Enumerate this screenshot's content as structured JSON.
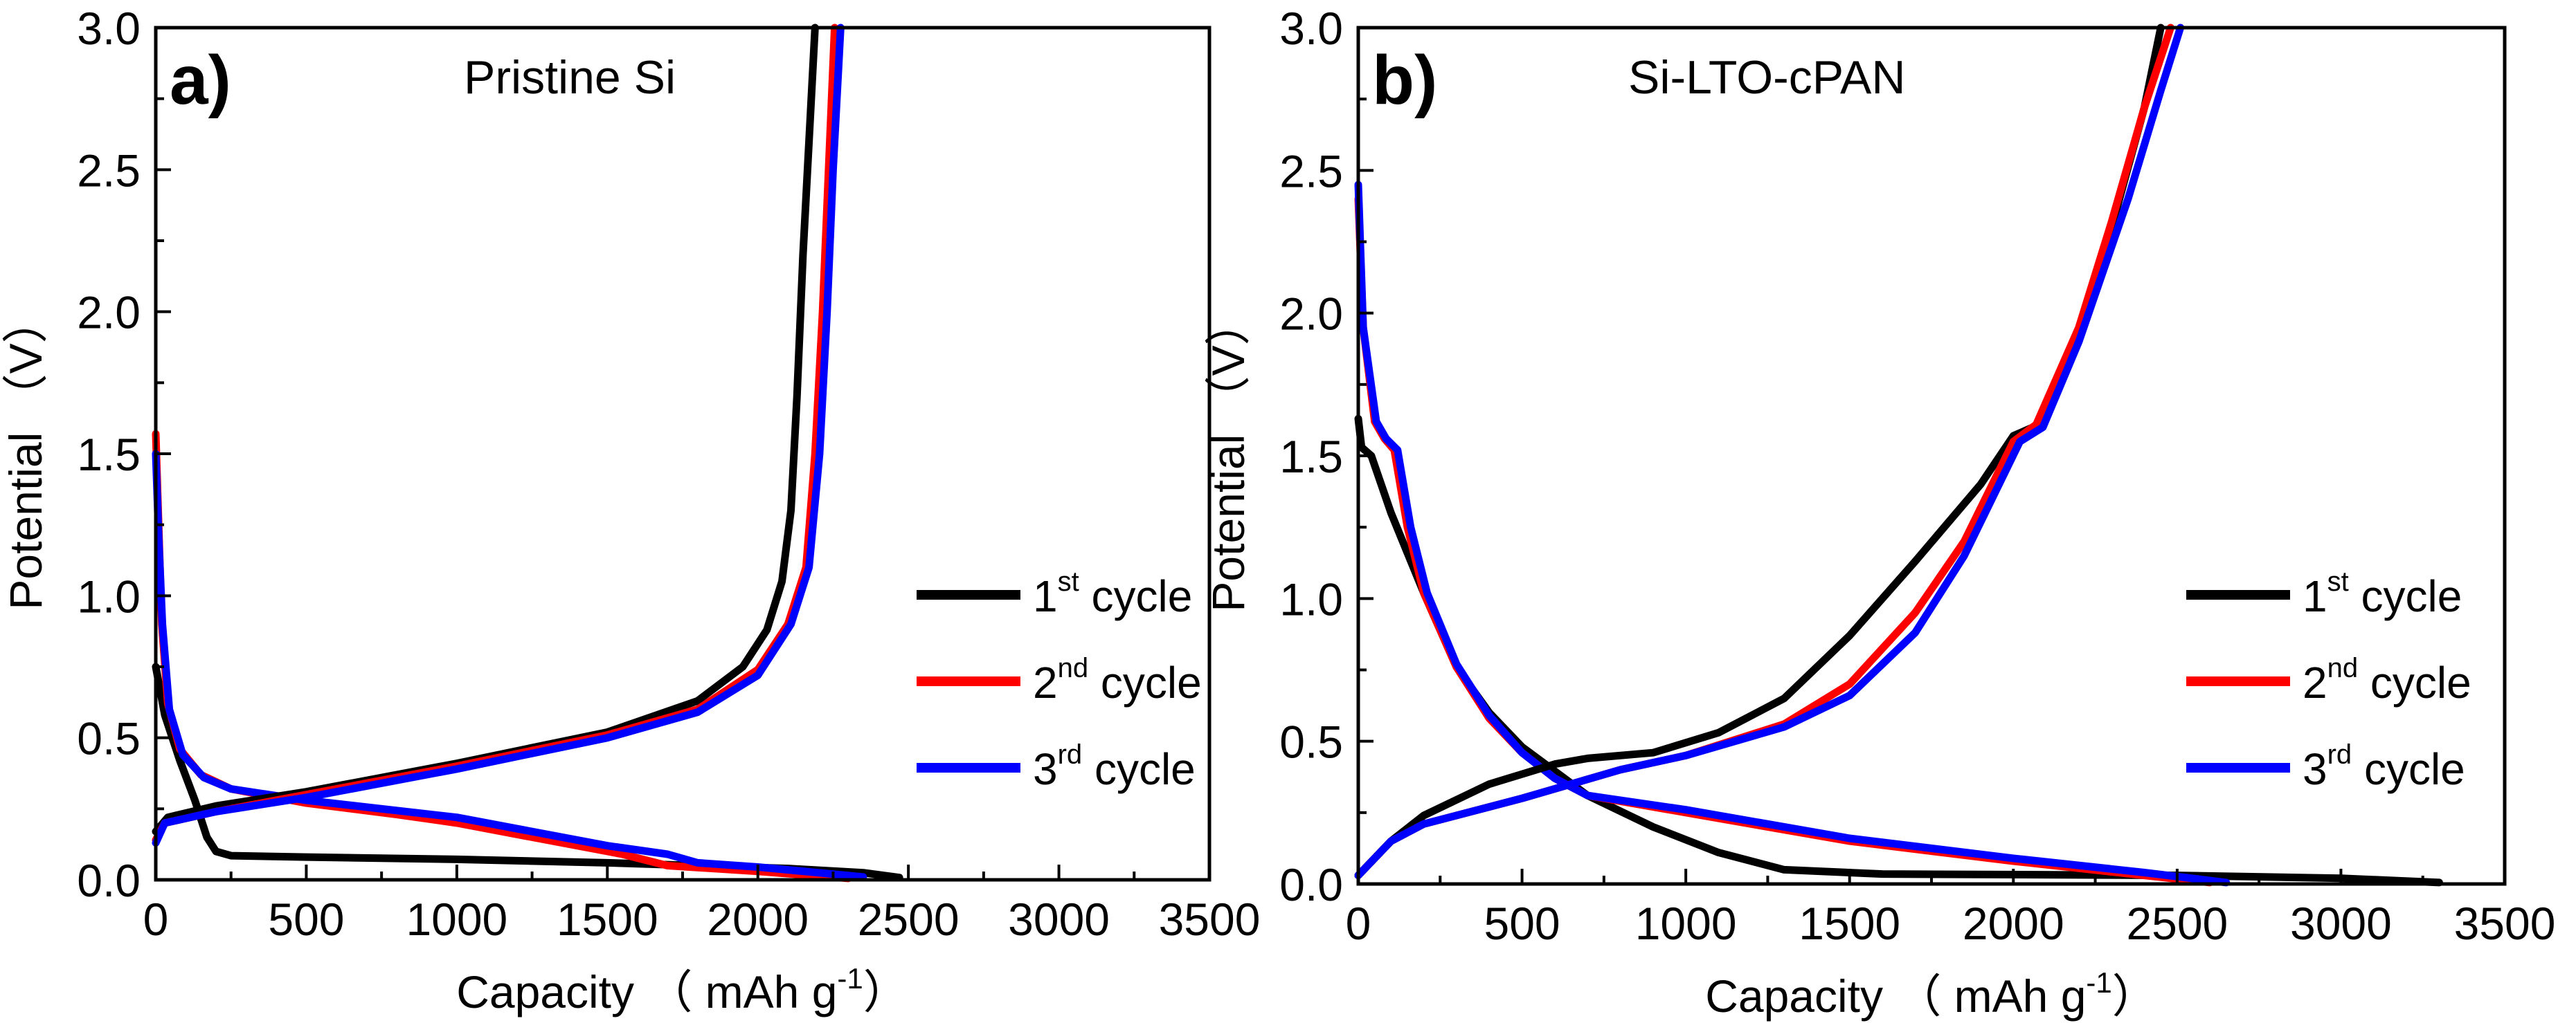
{
  "colors": {
    "cycle1": "#000000",
    "cycle2": "#ff0000",
    "cycle3": "#0000ff"
  },
  "chart_data": [
    {
      "type": "line",
      "panel_label": "a)",
      "title": "Pristine Si",
      "xlabel": "Capacity （ mAh g",
      "xlabel_sup": "-1",
      "xlabel_end": "）",
      "ylabel": "Potential （V）",
      "xlim": [
        0,
        3500
      ],
      "ylim": [
        0,
        3.0
      ],
      "xticks": [
        "0",
        "500",
        "1000",
        "1500",
        "2000",
        "2500",
        "3000",
        "3500"
      ],
      "yticks": [
        "0.0",
        "0.5",
        "1.0",
        "1.5",
        "2.0",
        "2.5",
        "3.0"
      ],
      "legend_position": "center-right",
      "legend": [
        {
          "num": "1",
          "sup": "st",
          "text": " cycle"
        },
        {
          "num": "2",
          "sup": "nd",
          "text": " cycle"
        },
        {
          "num": "3",
          "sup": "rd",
          "text": " cycle"
        }
      ],
      "series": [
        {
          "name": "1st cycle discharge",
          "color_key": "cycle1",
          "points": [
            [
              0,
              0.75
            ],
            [
              30,
              0.58
            ],
            [
              80,
              0.42
            ],
            [
              130,
              0.28
            ],
            [
              170,
              0.15
            ],
            [
              200,
              0.1
            ],
            [
              250,
              0.085
            ],
            [
              500,
              0.08
            ],
            [
              1000,
              0.072
            ],
            [
              1500,
              0.06
            ],
            [
              1800,
              0.05
            ],
            [
              2100,
              0.04
            ],
            [
              2350,
              0.025
            ],
            [
              2470,
              0.008
            ]
          ]
        },
        {
          "name": "2nd cycle discharge",
          "color_key": "cycle2",
          "points": [
            [
              0,
              1.57
            ],
            [
              8,
              1.3
            ],
            [
              20,
              0.9
            ],
            [
              40,
              0.62
            ],
            [
              80,
              0.46
            ],
            [
              150,
              0.37
            ],
            [
              250,
              0.32
            ],
            [
              500,
              0.27
            ],
            [
              800,
              0.23
            ],
            [
              1000,
              0.2
            ],
            [
              1300,
              0.14
            ],
            [
              1550,
              0.09
            ],
            [
              1700,
              0.05
            ],
            [
              2000,
              0.03
            ],
            [
              2300,
              0.005
            ]
          ]
        },
        {
          "name": "3rd cycle discharge",
          "color_key": "cycle3",
          "points": [
            [
              0,
              1.5
            ],
            [
              10,
              1.2
            ],
            [
              22,
              0.9
            ],
            [
              45,
              0.6
            ],
            [
              90,
              0.44
            ],
            [
              160,
              0.36
            ],
            [
              250,
              0.32
            ],
            [
              500,
              0.28
            ],
            [
              1000,
              0.22
            ],
            [
              1300,
              0.16
            ],
            [
              1500,
              0.12
            ],
            [
              1700,
              0.09
            ],
            [
              1800,
              0.06
            ],
            [
              2000,
              0.045
            ],
            [
              2200,
              0.025
            ],
            [
              2350,
              0.01
            ]
          ]
        },
        {
          "name": "1st cycle charge",
          "color_key": "cycle1",
          "points": [
            [
              0,
              0.17
            ],
            [
              40,
              0.22
            ],
            [
              200,
              0.26
            ],
            [
              500,
              0.31
            ],
            [
              1000,
              0.41
            ],
            [
              1500,
              0.52
            ],
            [
              1800,
              0.63
            ],
            [
              1950,
              0.75
            ],
            [
              2030,
              0.88
            ],
            [
              2080,
              1.05
            ],
            [
              2110,
              1.3
            ],
            [
              2130,
              1.7
            ],
            [
              2150,
              2.2
            ],
            [
              2170,
              2.6
            ],
            [
              2190,
              3.0
            ]
          ]
        },
        {
          "name": "2nd cycle charge",
          "color_key": "cycle2",
          "points": [
            [
              0,
              0.14
            ],
            [
              30,
              0.2
            ],
            [
              200,
              0.24
            ],
            [
              500,
              0.3
            ],
            [
              1000,
              0.4
            ],
            [
              1500,
              0.51
            ],
            [
              1800,
              0.6
            ],
            [
              2000,
              0.74
            ],
            [
              2100,
              0.9
            ],
            [
              2160,
              1.1
            ],
            [
              2190,
              1.5
            ],
            [
              2215,
              2.0
            ],
            [
              2235,
              2.5
            ],
            [
              2255,
              3.0
            ]
          ]
        },
        {
          "name": "3rd cycle charge",
          "color_key": "cycle3",
          "points": [
            [
              0,
              0.13
            ],
            [
              30,
              0.2
            ],
            [
              200,
              0.24
            ],
            [
              500,
              0.29
            ],
            [
              1000,
              0.39
            ],
            [
              1500,
              0.5
            ],
            [
              1800,
              0.59
            ],
            [
              2000,
              0.72
            ],
            [
              2110,
              0.9
            ],
            [
              2170,
              1.1
            ],
            [
              2205,
              1.5
            ],
            [
              2230,
              2.0
            ],
            [
              2250,
              2.5
            ],
            [
              2275,
              3.0
            ]
          ]
        }
      ]
    },
    {
      "type": "line",
      "panel_label": "b)",
      "title": "Si-LTO-cPAN",
      "xlabel": "Capacity （ mAh g",
      "xlabel_sup": "-1",
      "xlabel_end": "）",
      "ylabel": "Potential （V）",
      "xlim": [
        0,
        3500
      ],
      "ylim": [
        0,
        3.0
      ],
      "xticks": [
        "0",
        "500",
        "1000",
        "1500",
        "2000",
        "2500",
        "3000",
        "3500"
      ],
      "yticks": [
        "0.0",
        "0.5",
        "1.0",
        "1.5",
        "2.0",
        "2.5",
        "3.0"
      ],
      "legend_position": "center-right",
      "legend": [
        {
          "num": "1",
          "sup": "st",
          "text": " cycle"
        },
        {
          "num": "2",
          "sup": "nd",
          "text": " cycle"
        },
        {
          "num": "3",
          "sup": "rd",
          "text": " cycle"
        }
      ],
      "series": [
        {
          "name": "1st cycle discharge",
          "color_key": "cycle1",
          "points": [
            [
              0,
              1.63
            ],
            [
              10,
              1.53
            ],
            [
              40,
              1.5
            ],
            [
              100,
              1.3
            ],
            [
              200,
              1.02
            ],
            [
              300,
              0.76
            ],
            [
              400,
              0.6
            ],
            [
              500,
              0.48
            ],
            [
              700,
              0.31
            ],
            [
              900,
              0.2
            ],
            [
              1100,
              0.11
            ],
            [
              1300,
              0.05
            ],
            [
              1600,
              0.035
            ],
            [
              2500,
              0.03
            ],
            [
              3000,
              0.02
            ],
            [
              3300,
              0.005
            ]
          ]
        },
        {
          "name": "2nd cycle discharge",
          "color_key": "cycle2",
          "points": [
            [
              0,
              2.4
            ],
            [
              15,
              1.95
            ],
            [
              50,
              1.62
            ],
            [
              80,
              1.56
            ],
            [
              110,
              1.52
            ],
            [
              150,
              1.25
            ],
            [
              200,
              1.02
            ],
            [
              300,
              0.76
            ],
            [
              400,
              0.58
            ],
            [
              500,
              0.46
            ],
            [
              600,
              0.37
            ],
            [
              700,
              0.31
            ],
            [
              1000,
              0.25
            ],
            [
              1500,
              0.15
            ],
            [
              2000,
              0.08
            ],
            [
              2400,
              0.03
            ],
            [
              2600,
              0.005
            ]
          ]
        },
        {
          "name": "3rd cycle discharge",
          "color_key": "cycle3",
          "points": [
            [
              0,
              2.45
            ],
            [
              15,
              1.95
            ],
            [
              55,
              1.62
            ],
            [
              85,
              1.56
            ],
            [
              120,
              1.52
            ],
            [
              160,
              1.25
            ],
            [
              210,
              1.02
            ],
            [
              300,
              0.77
            ],
            [
              400,
              0.59
            ],
            [
              500,
              0.46
            ],
            [
              600,
              0.37
            ],
            [
              700,
              0.31
            ],
            [
              1000,
              0.26
            ],
            [
              1500,
              0.16
            ],
            [
              2000,
              0.09
            ],
            [
              2400,
              0.04
            ],
            [
              2650,
              0.005
            ]
          ]
        },
        {
          "name": "1st cycle charge",
          "color_key": "cycle1",
          "points": [
            [
              0,
              0.03
            ],
            [
              100,
              0.15
            ],
            [
              200,
              0.24
            ],
            [
              400,
              0.35
            ],
            [
              600,
              0.42
            ],
            [
              700,
              0.44
            ],
            [
              900,
              0.46
            ],
            [
              1100,
              0.53
            ],
            [
              1300,
              0.65
            ],
            [
              1500,
              0.87
            ],
            [
              1700,
              1.13
            ],
            [
              1900,
              1.4
            ],
            [
              2000,
              1.57
            ],
            [
              2080,
              1.61
            ],
            [
              2200,
              1.92
            ],
            [
              2300,
              2.3
            ],
            [
              2400,
              2.72
            ],
            [
              2450,
              3.0
            ]
          ]
        },
        {
          "name": "2nd cycle charge",
          "color_key": "cycle2",
          "points": [
            [
              0,
              0.03
            ],
            [
              100,
              0.15
            ],
            [
              200,
              0.21
            ],
            [
              500,
              0.3
            ],
            [
              800,
              0.4
            ],
            [
              1000,
              0.45
            ],
            [
              1300,
              0.56
            ],
            [
              1500,
              0.7
            ],
            [
              1700,
              0.95
            ],
            [
              1850,
              1.2
            ],
            [
              2000,
              1.55
            ],
            [
              2070,
              1.61
            ],
            [
              2200,
              1.95
            ],
            [
              2300,
              2.32
            ],
            [
              2400,
              2.72
            ],
            [
              2480,
              3.0
            ]
          ]
        },
        {
          "name": "3rd cycle charge",
          "color_key": "cycle3",
          "points": [
            [
              0,
              0.03
            ],
            [
              100,
              0.15
            ],
            [
              200,
              0.21
            ],
            [
              500,
              0.3
            ],
            [
              800,
              0.4
            ],
            [
              1000,
              0.45
            ],
            [
              1300,
              0.55
            ],
            [
              1500,
              0.66
            ],
            [
              1700,
              0.88
            ],
            [
              1850,
              1.15
            ],
            [
              2020,
              1.55
            ],
            [
              2090,
              1.6
            ],
            [
              2200,
              1.9
            ],
            [
              2350,
              2.4
            ],
            [
              2450,
              2.78
            ],
            [
              2510,
              3.0
            ]
          ]
        }
      ]
    }
  ]
}
